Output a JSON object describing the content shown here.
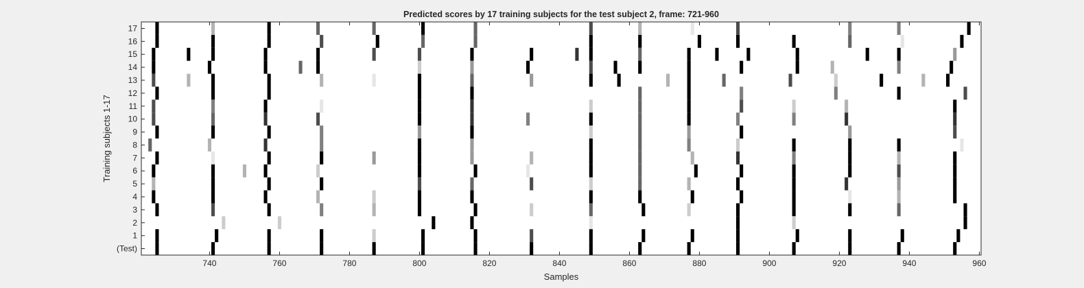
{
  "chart_data": {
    "type": "heatmap",
    "title": "Predicted scores by 17 training subjects for the test subject 2, frame: 721-960",
    "xlabel": "Samples",
    "ylabel": "Training subjects 1-17",
    "xlim": [
      721,
      960
    ],
    "x_ticks": [
      740,
      760,
      780,
      800,
      820,
      840,
      860,
      880,
      900,
      920,
      940,
      960
    ],
    "y_tick_labels": [
      "17",
      "16",
      "15",
      "14",
      "13",
      "12",
      "11",
      "10",
      "9",
      "8",
      "7",
      "6",
      "5",
      "4",
      "3",
      "2",
      "1",
      "(Test)"
    ],
    "colormap": "gray (0 = white, 1 = black)",
    "grid": false,
    "rows": [
      {
        "label": "17",
        "cells": [
          [
            725,
            1
          ],
          [
            741,
            0.3
          ],
          [
            757,
            1
          ],
          [
            771,
            0.6
          ],
          [
            787,
            0.6
          ],
          [
            801,
            1
          ],
          [
            816,
            0.6
          ],
          [
            849,
            0.7
          ],
          [
            863,
            0.3
          ],
          [
            878,
            0.1
          ],
          [
            891,
            0.7
          ],
          [
            923,
            0.5
          ],
          [
            937,
            0.5
          ],
          [
            957,
            1
          ]
        ]
      },
      {
        "label": "16",
        "cells": [
          [
            725,
            1
          ],
          [
            741,
            1
          ],
          [
            757,
            1
          ],
          [
            772,
            0.7
          ],
          [
            788,
            1
          ],
          [
            801,
            0.6
          ],
          [
            816,
            0.6
          ],
          [
            849,
            1
          ],
          [
            863,
            1
          ],
          [
            880,
            1
          ],
          [
            891,
            1
          ],
          [
            907,
            1
          ],
          [
            923,
            0.6
          ],
          [
            938,
            0.1
          ],
          [
            955,
            1
          ]
        ]
      },
      {
        "label": "15",
        "cells": [
          [
            724,
            1
          ],
          [
            734,
            1
          ],
          [
            741,
            1
          ],
          [
            756,
            1
          ],
          [
            771,
            1
          ],
          [
            787,
            0.7
          ],
          [
            800,
            0.7
          ],
          [
            815,
            1
          ],
          [
            832,
            1
          ],
          [
            845,
            0.8
          ],
          [
            849,
            1
          ],
          [
            863,
            0.6
          ],
          [
            877,
            1
          ],
          [
            885,
            1
          ],
          [
            894,
            1
          ],
          [
            908,
            1
          ],
          [
            928,
            1
          ],
          [
            937,
            1
          ],
          [
            953,
            0.4
          ]
        ]
      },
      {
        "label": "14",
        "cells": [
          [
            724,
            1
          ],
          [
            740,
            1
          ],
          [
            756,
            1
          ],
          [
            766,
            0.6
          ],
          [
            771,
            1
          ],
          [
            800,
            0.2
          ],
          [
            815,
            0.4
          ],
          [
            831,
            1
          ],
          [
            849,
            0.7
          ],
          [
            856,
            1
          ],
          [
            863,
            1
          ],
          [
            877,
            1
          ],
          [
            892,
            1
          ],
          [
            908,
            1
          ],
          [
            918,
            0.3
          ],
          [
            937,
            0.5
          ],
          [
            952,
            1
          ]
        ]
      },
      {
        "label": "13",
        "cells": [
          [
            724,
            0.7
          ],
          [
            734,
            0.3
          ],
          [
            741,
            1
          ],
          [
            757,
            1
          ],
          [
            772,
            0.3
          ],
          [
            787,
            0.1
          ],
          [
            800,
            1
          ],
          [
            815,
            0.6
          ],
          [
            832,
            0.4
          ],
          [
            849,
            1
          ],
          [
            857,
            1
          ],
          [
            871,
            0.3
          ],
          [
            877,
            1
          ],
          [
            887,
            0.6
          ],
          [
            906,
            0.7
          ],
          [
            919,
            0.2
          ],
          [
            932,
            1
          ],
          [
            944,
            0.3
          ],
          [
            951,
            1
          ]
        ]
      },
      {
        "label": "12",
        "cells": [
          [
            725,
            1
          ],
          [
            741,
            1
          ],
          [
            757,
            1
          ],
          [
            800,
            1
          ],
          [
            815,
            1
          ],
          [
            863,
            0.6
          ],
          [
            877,
            1
          ],
          [
            892,
            0.5
          ],
          [
            919,
            0.5
          ],
          [
            937,
            1
          ],
          [
            956,
            0.7
          ]
        ]
      },
      {
        "label": "11",
        "cells": [
          [
            724,
            0.7
          ],
          [
            741,
            0.5
          ],
          [
            756,
            1
          ],
          [
            772,
            0.1
          ],
          [
            800,
            1
          ],
          [
            815,
            0.8
          ],
          [
            849,
            0.2
          ],
          [
            863,
            0.6
          ],
          [
            877,
            1
          ],
          [
            892,
            0.7
          ],
          [
            907,
            0.2
          ],
          [
            922,
            0.3
          ],
          [
            953,
            1
          ]
        ]
      },
      {
        "label": "10",
        "cells": [
          [
            724,
            0.7
          ],
          [
            741,
            0.6
          ],
          [
            756,
            0.8
          ],
          [
            771,
            0.7
          ],
          [
            800,
            1
          ],
          [
            815,
            0.8
          ],
          [
            831,
            0.5
          ],
          [
            849,
            1
          ],
          [
            863,
            0.6
          ],
          [
            877,
            1
          ],
          [
            891,
            0.5
          ],
          [
            907,
            0.5
          ],
          [
            922,
            0.8
          ],
          [
            953,
            0.8
          ]
        ]
      },
      {
        "label": "9",
        "cells": [
          [
            725,
            1
          ],
          [
            741,
            1
          ],
          [
            757,
            1
          ],
          [
            772,
            0.5
          ],
          [
            800,
            0.4
          ],
          [
            815,
            1
          ],
          [
            849,
            0.2
          ],
          [
            863,
            0.6
          ],
          [
            877,
            0.4
          ],
          [
            892,
            1
          ],
          [
            923,
            0.4
          ],
          [
            953,
            0.7
          ]
        ]
      },
      {
        "label": "8",
        "cells": [
          [
            723,
            0.6
          ],
          [
            740,
            0.3
          ],
          [
            756,
            0.8
          ],
          [
            772,
            0.5
          ],
          [
            800,
            1
          ],
          [
            815,
            0.4
          ],
          [
            849,
            1
          ],
          [
            863,
            0.6
          ],
          [
            877,
            0.5
          ],
          [
            891,
            0.2
          ],
          [
            907,
            1
          ],
          [
            923,
            1
          ],
          [
            937,
            1
          ],
          [
            955,
            0.1
          ]
        ]
      },
      {
        "label": "7",
        "cells": [
          [
            725,
            1
          ],
          [
            741,
            0.1
          ],
          [
            757,
            1
          ],
          [
            772,
            1
          ],
          [
            787,
            0.4
          ],
          [
            800,
            1
          ],
          [
            815,
            0.4
          ],
          [
            832,
            0.3
          ],
          [
            849,
            1
          ],
          [
            863,
            0.6
          ],
          [
            878,
            0.3
          ],
          [
            891,
            0.8
          ],
          [
            907,
            0.5
          ],
          [
            923,
            1
          ],
          [
            937,
            0.3
          ],
          [
            953,
            1
          ]
        ]
      },
      {
        "label": "6",
        "cells": [
          [
            724,
            1
          ],
          [
            741,
            1
          ],
          [
            750,
            0.3
          ],
          [
            756,
            1
          ],
          [
            771,
            0.2
          ],
          [
            800,
            1
          ],
          [
            816,
            1
          ],
          [
            831,
            0.1
          ],
          [
            849,
            1
          ],
          [
            863,
            0.6
          ],
          [
            879,
            1
          ],
          [
            892,
            1
          ],
          [
            907,
            1
          ],
          [
            923,
            1
          ],
          [
            937,
            0.7
          ],
          [
            953,
            1
          ]
        ]
      },
      {
        "label": "5",
        "cells": [
          [
            724,
            0.3
          ],
          [
            741,
            1
          ],
          [
            757,
            1
          ],
          [
            772,
            1
          ],
          [
            800,
            0.7
          ],
          [
            815,
            0.6
          ],
          [
            832,
            0.7
          ],
          [
            849,
            0.2
          ],
          [
            863,
            0.6
          ],
          [
            877,
            0.3
          ],
          [
            891,
            1
          ],
          [
            907,
            1
          ],
          [
            922,
            0.8
          ],
          [
            937,
            0.4
          ],
          [
            953,
            1
          ]
        ]
      },
      {
        "label": "4",
        "cells": [
          [
            724,
            1
          ],
          [
            741,
            1
          ],
          [
            756,
            1
          ],
          [
            771,
            0.3
          ],
          [
            787,
            0.2
          ],
          [
            800,
            1
          ],
          [
            815,
            1
          ],
          [
            849,
            1
          ],
          [
            863,
            1
          ],
          [
            878,
            1
          ],
          [
            892,
            1
          ],
          [
            907,
            1
          ],
          [
            923,
            0.1
          ],
          [
            937,
            0.3
          ],
          [
            953,
            1
          ]
        ]
      },
      {
        "label": "3",
        "cells": [
          [
            725,
            1
          ],
          [
            741,
            0.7
          ],
          [
            757,
            1
          ],
          [
            772,
            0.5
          ],
          [
            787,
            0.3
          ],
          [
            800,
            1
          ],
          [
            816,
            1
          ],
          [
            832,
            0.2
          ],
          [
            849,
            0.6
          ],
          [
            864,
            1
          ],
          [
            877,
            0.2
          ],
          [
            891,
            1
          ],
          [
            907,
            1
          ],
          [
            923,
            1
          ],
          [
            937,
            0.6
          ],
          [
            956,
            1
          ]
        ]
      },
      {
        "label": "2",
        "cells": [
          [
            744,
            0.2
          ],
          [
            760,
            0.2
          ],
          [
            804,
            1
          ],
          [
            815,
            1
          ],
          [
            849,
            0.1
          ],
          [
            891,
            1
          ],
          [
            907,
            0.2
          ],
          [
            956,
            1
          ]
        ]
      },
      {
        "label": "1",
        "cells": [
          [
            725,
            1
          ],
          [
            742,
            1
          ],
          [
            757,
            1
          ],
          [
            772,
            1
          ],
          [
            787,
            0.2
          ],
          [
            801,
            1
          ],
          [
            816,
            1
          ],
          [
            832,
            0.7
          ],
          [
            849,
            1
          ],
          [
            864,
            1
          ],
          [
            878,
            1
          ],
          [
            891,
            1
          ],
          [
            908,
            1
          ],
          [
            923,
            1
          ],
          [
            938,
            1
          ],
          [
            954,
            1
          ]
        ]
      },
      {
        "label": "(Test)",
        "cells": [
          [
            725,
            1
          ],
          [
            741,
            1
          ],
          [
            757,
            1
          ],
          [
            772,
            1
          ],
          [
            787,
            1
          ],
          [
            801,
            1
          ],
          [
            816,
            1
          ],
          [
            832,
            1
          ],
          [
            849,
            1
          ],
          [
            863,
            1
          ],
          [
            877,
            1
          ],
          [
            891,
            1
          ],
          [
            907,
            1
          ],
          [
            923,
            1
          ],
          [
            937,
            1
          ],
          [
            953,
            1
          ]
        ]
      }
    ]
  }
}
